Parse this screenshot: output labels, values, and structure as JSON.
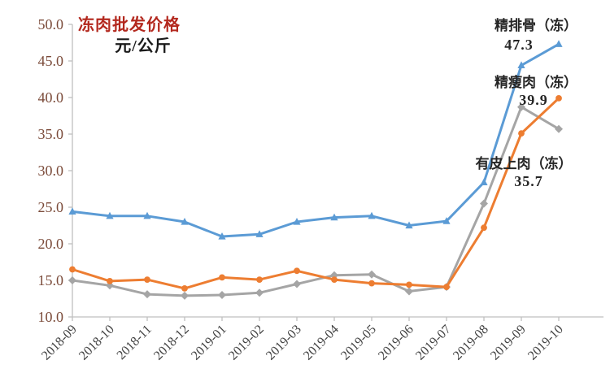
{
  "chart_data": {
    "type": "line",
    "title": "冻肉批发价格",
    "unit_label": "元/公斤",
    "categories": [
      "2018-09",
      "2018-10",
      "2018-11",
      "2018-12",
      "2019-01",
      "2019-02",
      "2019-03",
      "2019-04",
      "2019-05",
      "2019-06",
      "2019-07",
      "2019-08",
      "2019-09",
      "2019-10"
    ],
    "y_axis": {
      "min": 10,
      "max": 50,
      "step": 5,
      "tick_labels": [
        "10.0",
        "15.0",
        "20.0",
        "25.0",
        "30.0",
        "35.0",
        "40.0",
        "45.0",
        "50.0"
      ]
    },
    "grid": false,
    "legend_position": "inline-annotations-right",
    "series": [
      {
        "name": "精排骨（冻）",
        "end_label": "47.3",
        "color": "#5B9BD5",
        "marker": "triangle",
        "values": [
          24.4,
          23.8,
          23.8,
          23.0,
          21.0,
          21.3,
          23.0,
          23.6,
          23.8,
          22.5,
          23.1,
          28.4,
          44.4,
          47.3
        ]
      },
      {
        "name": "精瘦肉（冻）",
        "end_label": "39.9",
        "color": "#ED7D31",
        "marker": "circle",
        "values": [
          16.5,
          14.9,
          15.1,
          13.9,
          15.4,
          15.1,
          16.3,
          15.1,
          14.6,
          14.4,
          14.1,
          22.2,
          35.1,
          39.9
        ]
      },
      {
        "name": "有皮上肉（冻）",
        "end_label": "35.7",
        "color": "#A5A5A5",
        "marker": "diamond",
        "values": [
          15.0,
          14.3,
          13.1,
          12.9,
          13.0,
          13.3,
          14.5,
          15.7,
          15.8,
          13.5,
          14.1,
          25.5,
          38.7,
          35.7
        ]
      }
    ],
    "colors": {
      "axis_line": "#BFBFBF",
      "x_tick_label": "#404040",
      "y_tick_label": "#7B4B3A",
      "title": "#B3281E",
      "annotation": "#262626",
      "background": "#FFFFFF"
    }
  }
}
